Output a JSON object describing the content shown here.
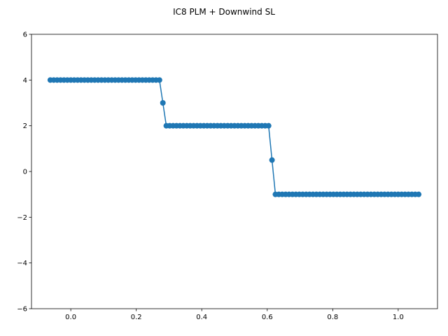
{
  "chart_data": {
    "type": "line",
    "title": "IC8 PLM + Downwind SL",
    "xlabel": "",
    "ylabel": "",
    "xlim": [
      -0.12,
      1.12
    ],
    "ylim": [
      -6,
      6
    ],
    "x_ticks": [
      0.0,
      0.2,
      0.4,
      0.6,
      0.8,
      1.0
    ],
    "x_tick_labels": [
      "0.0",
      "0.2",
      "0.4",
      "0.6",
      "0.8",
      "1.0"
    ],
    "y_ticks": [
      -6,
      -4,
      -2,
      0,
      2,
      4,
      6
    ],
    "y_tick_labels": [
      "−6",
      "−4",
      "−2",
      "0",
      "2",
      "4",
      "6"
    ],
    "grid": false,
    "series": [
      {
        "color": "#1f77b4",
        "marker": "circle",
        "x": [
          -0.0625,
          -0.05208,
          -0.04167,
          -0.03125,
          -0.02083,
          -0.01042,
          0.0,
          0.01042,
          0.02083,
          0.03125,
          0.04167,
          0.05208,
          0.0625,
          0.07292,
          0.08333,
          0.09375,
          0.10417,
          0.11458,
          0.125,
          0.13542,
          0.14583,
          0.15625,
          0.16667,
          0.17708,
          0.1875,
          0.19792,
          0.20833,
          0.21875,
          0.22917,
          0.23958,
          0.25,
          0.26042,
          0.27083,
          0.28125,
          0.29167,
          0.30208,
          0.3125,
          0.32292,
          0.33333,
          0.34375,
          0.35417,
          0.36458,
          0.375,
          0.38542,
          0.39583,
          0.40625,
          0.41667,
          0.42708,
          0.4375,
          0.44792,
          0.45833,
          0.46875,
          0.47917,
          0.48958,
          0.5,
          0.51042,
          0.52083,
          0.53125,
          0.54167,
          0.55208,
          0.5625,
          0.57292,
          0.58333,
          0.59375,
          0.60417,
          0.61458,
          0.625,
          0.63542,
          0.64583,
          0.65625,
          0.66667,
          0.67708,
          0.6875,
          0.69792,
          0.70833,
          0.71875,
          0.72917,
          0.73958,
          0.75,
          0.76042,
          0.77083,
          0.78125,
          0.79167,
          0.80208,
          0.8125,
          0.82292,
          0.83333,
          0.84375,
          0.85417,
          0.86458,
          0.875,
          0.88542,
          0.89583,
          0.90625,
          0.91667,
          0.92708,
          0.9375,
          0.94792,
          0.95833,
          0.96875,
          0.97917,
          0.98958,
          1.0,
          1.01042,
          1.02083,
          1.03125,
          1.04167,
          1.05208,
          1.0625
        ],
        "y": [
          4,
          4,
          4,
          4,
          4,
          4,
          4,
          4,
          4,
          4,
          4,
          4,
          4,
          4,
          4,
          4,
          4,
          4,
          4,
          4,
          4,
          4,
          4,
          4,
          4,
          4,
          4,
          4,
          4,
          4,
          4,
          4,
          4,
          3,
          2,
          2,
          2,
          2,
          2,
          2,
          2,
          2,
          2,
          2,
          2,
          2,
          2,
          2,
          2,
          2,
          2,
          2,
          2,
          2,
          2,
          2,
          2,
          2,
          2,
          2,
          2,
          2,
          2,
          2,
          2,
          0.5,
          -1,
          -1,
          -1,
          -1,
          -1,
          -1,
          -1,
          -1,
          -1,
          -1,
          -1,
          -1,
          -1,
          -1,
          -1,
          -1,
          -1,
          -1,
          -1,
          -1,
          -1,
          -1,
          -1,
          -1,
          -1,
          -1,
          -1,
          -1,
          -1,
          -1,
          -1,
          -1,
          -1,
          -1,
          -1,
          -1,
          -1,
          -1,
          -1,
          -1,
          -1,
          -1,
          -1
        ]
      }
    ]
  }
}
